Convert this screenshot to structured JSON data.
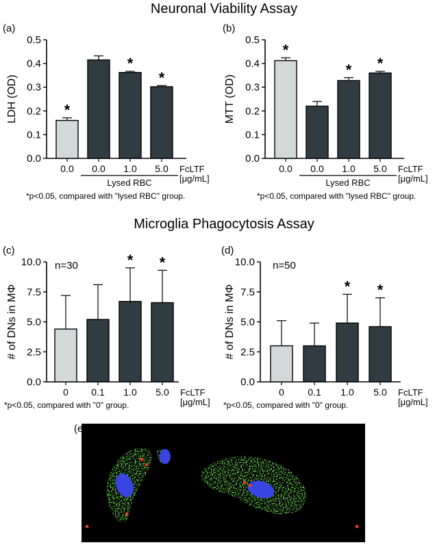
{
  "titles": {
    "neuronal": "Neuronal Viability Assay",
    "microglia": "Microglia Phagocytosis Assay"
  },
  "colors": {
    "control": "#d3d9d9",
    "treated": "#313c42"
  },
  "chart_data": [
    {
      "panel": "(a)",
      "type": "bar",
      "ylabel": "LDH (OD)",
      "ylim": [
        0,
        0.5
      ],
      "yticks": [
        "0.0",
        "0.1",
        "0.2",
        "0.3",
        "0.4",
        "0.5"
      ],
      "categories": [
        "0.0",
        "0.0",
        "1.0",
        "5.0"
      ],
      "values": [
        0.16,
        0.415,
        0.362,
        0.302
      ],
      "errors": [
        0.011,
        0.017,
        0.005,
        0.005
      ],
      "fill": [
        "control",
        "treated",
        "treated",
        "treated"
      ],
      "significant": [
        true,
        false,
        true,
        true
      ],
      "group_label": "Lysed RBC",
      "unit_label": [
        "FcLTF",
        "[μg/mL]"
      ],
      "footnote": "*p<0.05, compared with \"lysed RBC\" group."
    },
    {
      "panel": "(b)",
      "type": "bar",
      "ylabel": "MTT (OD)",
      "ylim": [
        0,
        0.5
      ],
      "yticks": [
        "0.0",
        "0.1",
        "0.2",
        "0.3",
        "0.4",
        "0.5"
      ],
      "categories": [
        "0.0",
        "0.0",
        "1.0",
        "5.0"
      ],
      "values": [
        0.412,
        0.22,
        0.328,
        0.36
      ],
      "errors": [
        0.012,
        0.02,
        0.012,
        0.007
      ],
      "fill": [
        "control",
        "treated",
        "treated",
        "treated"
      ],
      "significant": [
        true,
        false,
        true,
        true
      ],
      "group_label": "Lysed RBC",
      "unit_label": [
        "FcLTF",
        "[μg/mL]"
      ],
      "footnote": "*p<0.05, compared with \"lysed RBC\" group."
    },
    {
      "panel": "(c)",
      "type": "bar",
      "ylabel": "# of DNs in MΦ",
      "ylim": [
        0,
        10
      ],
      "yticks": [
        "0.0",
        "2.5",
        "5.0",
        "7.5",
        "10.0"
      ],
      "categories": [
        "0",
        "0.1",
        "1.0",
        "5.0"
      ],
      "values": [
        4.4,
        5.2,
        6.7,
        6.6
      ],
      "errors": [
        2.8,
        2.9,
        2.8,
        2.7
      ],
      "fill": [
        "control",
        "treated",
        "treated",
        "treated"
      ],
      "significant": [
        false,
        false,
        true,
        true
      ],
      "annotation": "n=30",
      "unit_label": [
        "FcLTF",
        "[μg/mL]"
      ],
      "footnote": "*p<0.05, compared with \"0\" group."
    },
    {
      "panel": "(d)",
      "type": "bar",
      "ylabel": "# of DNs in MΦ",
      "ylim": [
        0,
        10
      ],
      "yticks": [
        "0.0",
        "2.5",
        "5.0",
        "7.5",
        "10.0"
      ],
      "categories": [
        "0",
        "0.1",
        "1.0",
        "5.0"
      ],
      "values": [
        3.0,
        3.0,
        4.9,
        4.6
      ],
      "errors": [
        2.1,
        1.9,
        2.4,
        2.4
      ],
      "fill": [
        "control",
        "treated",
        "treated",
        "treated"
      ],
      "significant": [
        false,
        false,
        true,
        true
      ],
      "annotation": "n=50",
      "unit_label": [
        "FcLTF",
        "[μg/mL]"
      ],
      "footnote": "*p<0.05, compared with \"0\" group."
    }
  ],
  "micrograph": {
    "panel": "(e)",
    "channels": {
      "membrane": "#2fd21c",
      "nucleus": "#3a44e0",
      "particle": "#e8401e"
    }
  }
}
